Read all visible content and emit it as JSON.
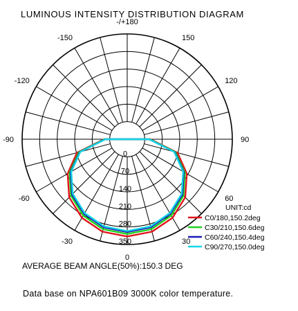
{
  "title": "LUMINOUS INTENSITY DISTRIBUTION DIAGRAM",
  "average_beam": "AVERAGE BEAM ANGLE(50%):150.3 DEG",
  "database": "Data base on NPA601B09  3000K color temperature.",
  "chart_data": {
    "type": "polar",
    "unit": "UNIT:cd",
    "angle_labels": [
      {
        "deg": 180,
        "label": "-/+180"
      },
      {
        "deg": -150,
        "label": "-150"
      },
      {
        "deg": 150,
        "label": "150"
      },
      {
        "deg": -120,
        "label": "-120"
      },
      {
        "deg": 120,
        "label": "120"
      },
      {
        "deg": -90,
        "label": "-90"
      },
      {
        "deg": 90,
        "label": "90"
      },
      {
        "deg": -60,
        "label": "-60"
      },
      {
        "deg": 60,
        "label": "60"
      },
      {
        "deg": -30,
        "label": "-30"
      },
      {
        "deg": 30,
        "label": "30"
      },
      {
        "deg": 0,
        "label": "0"
      }
    ],
    "radial_ticks": [
      0,
      70,
      140,
      210,
      280,
      350
    ],
    "rmax": 350,
    "grid_angle_step": 15,
    "series": [
      {
        "name": "C0/180,150.2deg",
        "color": "#e0141b",
        "angles": [
          0,
          15,
          30,
          45,
          60,
          75,
          90
        ],
        "values": [
          318,
          312,
          292,
          258,
          205,
          138,
          22
        ]
      },
      {
        "name": "C30/210,150.6deg",
        "color": "#1fd11f",
        "angles": [
          0,
          15,
          30,
          45,
          60,
          75,
          90
        ],
        "values": [
          308,
          302,
          282,
          248,
          196,
          130,
          20
        ]
      },
      {
        "name": "C60/240,150.4deg",
        "color": "#1a1ab8",
        "angles": [
          0,
          15,
          30,
          45,
          60,
          75,
          90
        ],
        "values": [
          300,
          294,
          274,
          242,
          191,
          126,
          18
        ]
      },
      {
        "name": "C90/270,150.0deg",
        "color": "#15d6e6",
        "angles": [
          0,
          15,
          30,
          45,
          60,
          75,
          90
        ],
        "values": [
          296,
          290,
          270,
          238,
          188,
          124,
          17
        ]
      }
    ]
  }
}
